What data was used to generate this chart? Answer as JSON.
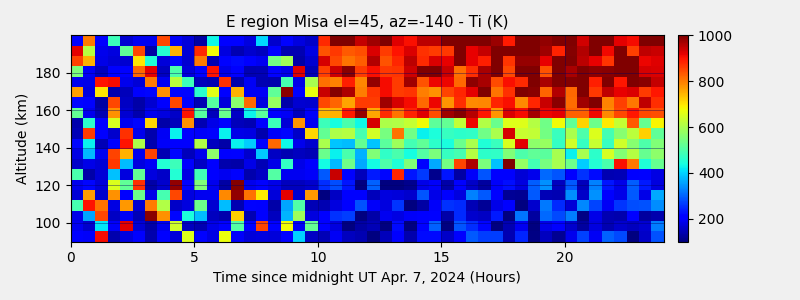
{
  "title": "E region Misa el=45, az=-140 - Ti (K)",
  "xlabel": "Time since midnight UT Apr. 7, 2024 (Hours)",
  "ylabel": "Altitude (km)",
  "time_min": 0,
  "time_max": 24,
  "alt_min": 90,
  "alt_max": 200,
  "vmin": 100,
  "vmax": 1000,
  "cbar_ticks": [
    200,
    400,
    600,
    800,
    1000
  ],
  "colormap": "jet",
  "n_time": 48,
  "n_alt": 20,
  "figsize": [
    8.0,
    3.0
  ],
  "dpi": 100,
  "title_fontsize": 11,
  "label_fontsize": 10,
  "tick_fontsize": 10,
  "background_color": "#00008B",
  "fig_background": "#f0f0f0",
  "xticks": [
    0,
    5,
    10,
    15,
    20
  ],
  "yticks": [
    100,
    120,
    140,
    160,
    180
  ]
}
